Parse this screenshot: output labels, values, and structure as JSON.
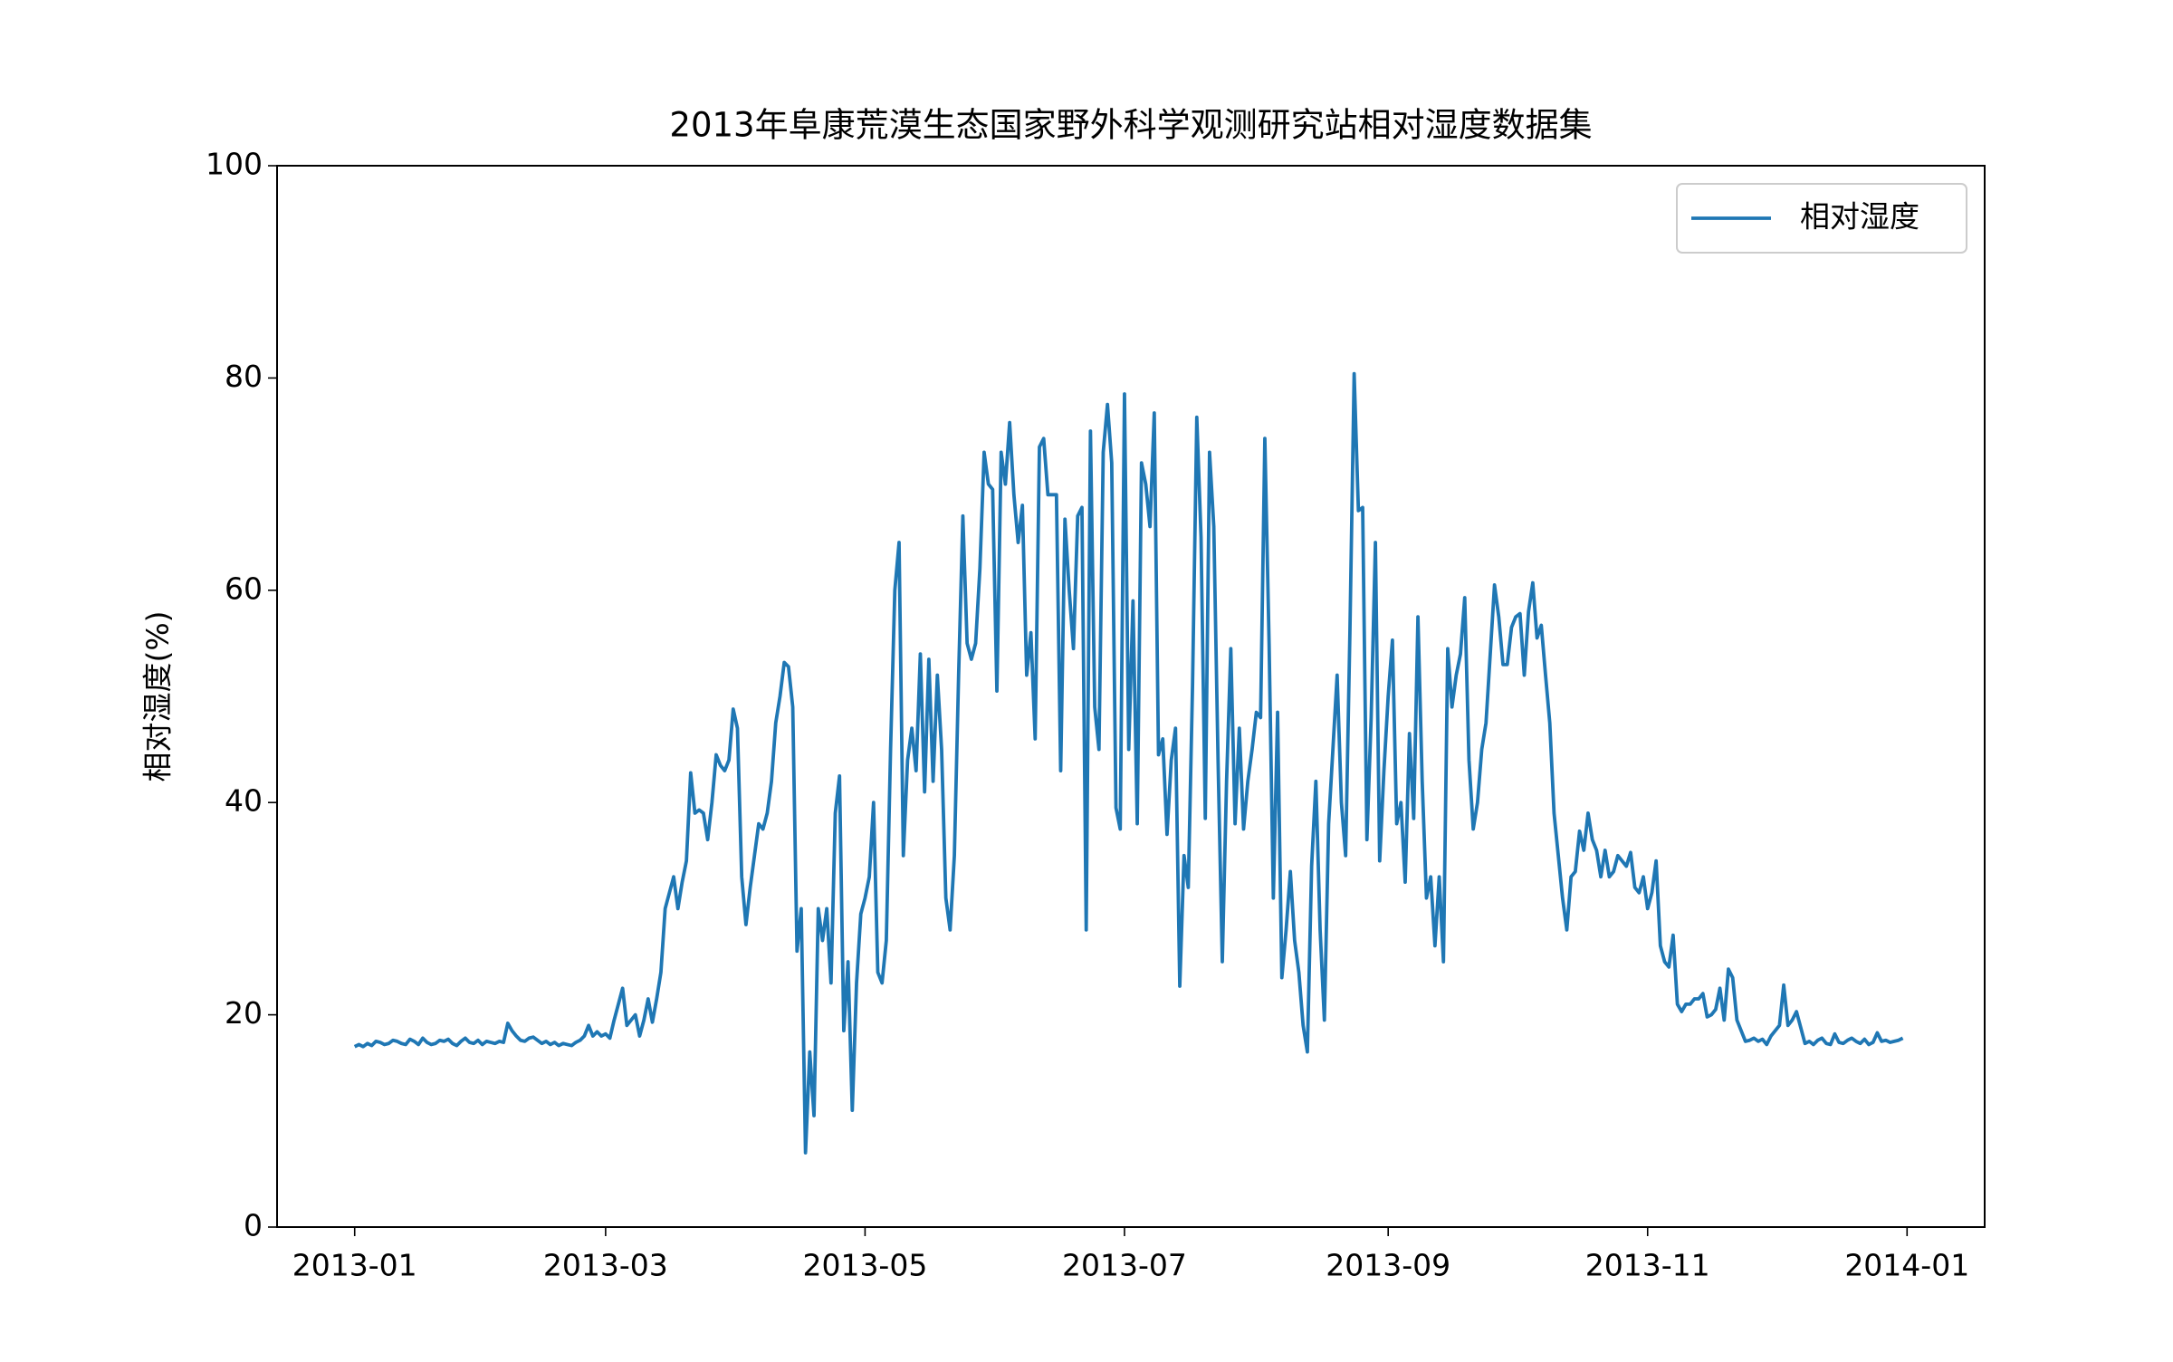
{
  "chart_data": {
    "type": "line",
    "title": "2013年阜康荒漠生态国家野外科学观测研究站相对湿度数据集",
    "y_label": "相对湿度(%)",
    "x": [
      0,
      1,
      2,
      3,
      4,
      5,
      6,
      7,
      8,
      9,
      10,
      11,
      12,
      13,
      14,
      15,
      16,
      17,
      18,
      19,
      20,
      21,
      22,
      23,
      24,
      25,
      26,
      27,
      28,
      29,
      30,
      31,
      32,
      33,
      34,
      35,
      36,
      37,
      38,
      39,
      40,
      41,
      42,
      43,
      44,
      45,
      46,
      47,
      48,
      49,
      50,
      51,
      52,
      53,
      54,
      55,
      56,
      57,
      58,
      59,
      60,
      61,
      62,
      63,
      64,
      65,
      66,
      67,
      68,
      69,
      70,
      71,
      72,
      73,
      74,
      75,
      76,
      77,
      78,
      79,
      80,
      81,
      82,
      83,
      84,
      85,
      86,
      87,
      88,
      89,
      90,
      91,
      92,
      93,
      94,
      95,
      96,
      97,
      98,
      99,
      100,
      101,
      102,
      103,
      104,
      105,
      106,
      107,
      108,
      109,
      110,
      111,
      112,
      113,
      114,
      115,
      116,
      117,
      118,
      119,
      120,
      121,
      122,
      123,
      124,
      125,
      126,
      127,
      128,
      129,
      130,
      131,
      132,
      133,
      134,
      135,
      136,
      137,
      138,
      139,
      140,
      141,
      142,
      143,
      144,
      145,
      146,
      147,
      148,
      149,
      150,
      151,
      152,
      153,
      154,
      155,
      156,
      157,
      158,
      159,
      160,
      161,
      162,
      163,
      164,
      165,
      166,
      167,
      168,
      169,
      170,
      171,
      172,
      173,
      174,
      175,
      176,
      177,
      178,
      179,
      180,
      181,
      182,
      183,
      184,
      185,
      186,
      187,
      188,
      189,
      190,
      191,
      192,
      193,
      194,
      195,
      196,
      197,
      198,
      199,
      200,
      201,
      202,
      203,
      204,
      205,
      206,
      207,
      208,
      209,
      210,
      211,
      212,
      213,
      214,
      215,
      216,
      217,
      218,
      219,
      220,
      221,
      222,
      223,
      224,
      225,
      226,
      227,
      228,
      229,
      230,
      231,
      232,
      233,
      234,
      235,
      236,
      237,
      238,
      239,
      240,
      241,
      242,
      243,
      244,
      245,
      246,
      247,
      248,
      249,
      250,
      251,
      252,
      253,
      254,
      255,
      256,
      257,
      258,
      259,
      260,
      261,
      262,
      263,
      264,
      265,
      266,
      267,
      268,
      269,
      270,
      271,
      272,
      273,
      274,
      275,
      276,
      277,
      278,
      279,
      280,
      281,
      282,
      283,
      284,
      285,
      286,
      287,
      288,
      289,
      290,
      291,
      292,
      293,
      294,
      295,
      296,
      297,
      298,
      299,
      300,
      301,
      302,
      303,
      304,
      305,
      306,
      307,
      308,
      309,
      310,
      311,
      312,
      313,
      314,
      315,
      316,
      317,
      318,
      319,
      320,
      321,
      322,
      323,
      324,
      325,
      326,
      327,
      328,
      329,
      330,
      331,
      332,
      333,
      334,
      335,
      336,
      337,
      338,
      339,
      340,
      341,
      342,
      343,
      344,
      345,
      346,
      347,
      348,
      349,
      350,
      351,
      352,
      353,
      354,
      355,
      356,
      357,
      358,
      359,
      360,
      361,
      362,
      363,
      364
    ],
    "series": [
      {
        "name": "相对湿度",
        "color": "#1f77b4",
        "values": [
          17,
          17.2,
          17,
          17.3,
          17.1,
          17.5,
          17.4,
          17.2,
          17.3,
          17.6,
          17.5,
          17.3,
          17.2,
          17.7,
          17.5,
          17.2,
          17.8,
          17.4,
          17.2,
          17.3,
          17.6,
          17.5,
          17.7,
          17.3,
          17.1,
          17.5,
          17.8,
          17.4,
          17.3,
          17.6,
          17.2,
          17.5,
          17.4,
          17.3,
          17.5,
          17.4,
          19.2,
          18.5,
          18,
          17.6,
          17.5,
          17.8,
          17.9,
          17.6,
          17.3,
          17.5,
          17.2,
          17.4,
          17.1,
          17.3,
          17.2,
          17.1,
          17.4,
          17.6,
          18,
          19,
          18,
          18.4,
          18,
          18.2,
          17.8,
          19.5,
          21,
          22.5,
          19,
          19.5,
          20,
          18,
          19.5,
          21.5,
          19.3,
          21.5,
          24,
          30,
          31.5,
          33,
          30,
          32.5,
          34.5,
          42.8,
          39,
          39.3,
          39,
          36.5,
          40,
          44.5,
          43.5,
          43,
          44,
          48.8,
          47,
          33,
          28.5,
          32,
          35,
          38,
          37.5,
          39,
          42,
          47.5,
          50,
          53.2,
          52.8,
          49,
          26,
          30,
          7,
          16.5,
          10.5,
          30,
          27,
          30,
          23,
          39,
          42.5,
          18.5,
          25,
          11,
          23,
          29.5,
          31,
          33,
          40,
          24,
          23,
          27,
          45,
          60,
          64.5,
          35,
          44,
          47,
          43,
          54,
          41,
          53.5,
          42,
          52,
          45,
          31,
          28,
          35,
          52,
          67,
          55,
          53.5,
          55,
          62,
          73,
          70,
          69.5,
          50.5,
          73,
          70,
          75.8,
          69,
          64.5,
          68,
          52,
          56,
          46,
          73.5,
          74.3,
          69,
          69,
          69,
          43,
          66.7,
          60,
          54.5,
          67,
          67.8,
          28,
          75,
          49,
          45,
          73,
          77.5,
          72,
          39.5,
          37.5,
          78.5,
          45,
          59,
          38,
          72,
          70,
          66,
          76.7,
          44.5,
          46,
          37,
          44,
          47,
          22.7,
          35,
          32,
          51,
          76.3,
          65,
          38.5,
          73,
          66,
          44,
          25,
          42,
          54.5,
          38,
          47,
          37.5,
          42,
          45,
          48.5,
          48,
          74.3,
          55,
          31,
          48.5,
          23.5,
          28,
          33.5,
          27,
          24,
          19,
          16.5,
          34,
          42,
          28,
          19.5,
          38,
          45,
          52,
          40,
          35,
          56,
          80.4,
          67.5,
          67.8,
          36.5,
          48,
          64.5,
          34.5,
          43,
          50,
          55.3,
          38,
          40,
          32.5,
          46.5,
          38.5,
          57.5,
          42,
          31,
          33,
          26.5,
          33,
          25,
          54.5,
          49,
          52,
          54,
          59.3,
          44,
          37.5,
          40,
          45,
          47.5,
          54,
          60.5,
          57.5,
          53,
          53,
          56.5,
          57.5,
          57.8,
          52,
          58,
          60.7,
          55.5,
          56.7,
          52,
          47.5,
          39,
          35,
          31,
          28,
          33,
          33.5,
          37.3,
          35.5,
          39,
          36.5,
          35.5,
          33,
          35.5,
          33,
          33.5,
          35,
          34.5,
          34,
          35.3,
          32,
          31.5,
          33,
          30,
          31.5,
          34.5,
          26.5,
          25,
          24.5,
          27.5,
          21,
          20.3,
          21,
          21,
          21.5,
          21.5,
          22,
          19.8,
          20,
          20.5,
          22.5,
          19.5,
          24.3,
          23.5,
          19.5,
          18.5,
          17.5,
          17.6,
          17.8,
          17.5,
          17.7,
          17.2,
          18,
          18.5,
          19,
          22.8,
          19,
          19.5,
          20.3,
          18.8,
          17.3,
          17.5,
          17.2,
          17.6,
          17.8,
          17.3,
          17.2,
          18.2,
          17.4,
          17.3,
          17.6,
          17.8,
          17.5,
          17.3,
          17.7,
          17.2,
          17.4,
          18.3,
          17.5,
          17.6,
          17.4,
          17.5,
          17.6,
          17.8
        ]
      }
    ],
    "xlim": [
      -18.25,
      383.25
    ],
    "xticks": [
      {
        "value": 0,
        "label": "2013-01"
      },
      {
        "value": 59,
        "label": "2013-03"
      },
      {
        "value": 120,
        "label": "2013-05"
      },
      {
        "value": 181,
        "label": "2013-07"
      },
      {
        "value": 243,
        "label": "2013-09"
      },
      {
        "value": 304,
        "label": "2013-11"
      },
      {
        "value": 365,
        "label": "2014-01"
      }
    ],
    "ylim": [
      0,
      100
    ],
    "yticks": [
      0,
      20,
      40,
      60,
      80,
      100
    ],
    "legend": "upper right"
  }
}
